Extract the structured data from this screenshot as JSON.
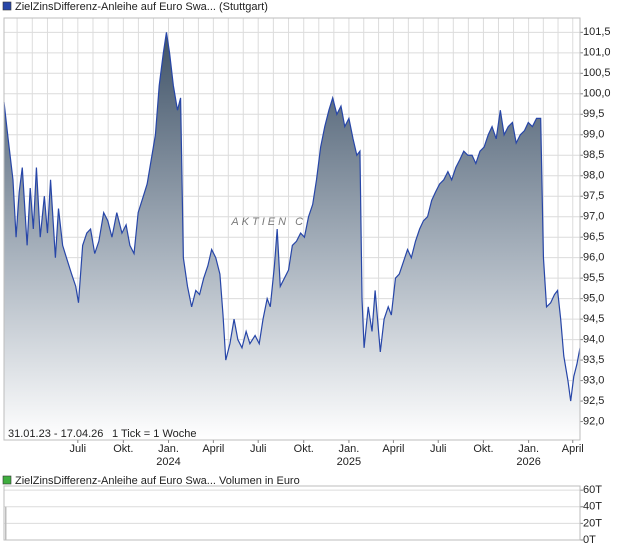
{
  "chart_data": [
    {
      "type": "area",
      "title": "ZielZinsDifferenz-Anleihe auf Euro Swa... (Stuttgart)",
      "period": "31.01.23 - 17.04.26",
      "tick_note": "1 Tick = 1 Woche",
      "watermark": "AKTIEN CHECK",
      "x": [
        0,
        1.2,
        2.6,
        3.5,
        4.4,
        5.3,
        6.7,
        7.6,
        8.5,
        9.4,
        10.5,
        11.7,
        12.6,
        13.5,
        14.9,
        15.8,
        17.0,
        18.1,
        19.6,
        20.8,
        21.6,
        22.8,
        24.0,
        25.1,
        26.3,
        27.5,
        28.9,
        30.1,
        31.3,
        32.7,
        34.2,
        35.4,
        36.5,
        37.7,
        38.9,
        40.4,
        41.5,
        42.7,
        43.9,
        45.0,
        46.2,
        47.1,
        48.0,
        49.1,
        50.3,
        51.2,
        52.0,
        53.2,
        54.4,
        55.6,
        56.7,
        57.9,
        59.1,
        60.2,
        61.4,
        62.6,
        63.5,
        64.3,
        65.5,
        66.7,
        67.8,
        69.0,
        70.2,
        71.3,
        72.8,
        74.0,
        75.1,
        76.3,
        77.2,
        78.4,
        79.2,
        80.1,
        81.3,
        82.5,
        83.6,
        84.8,
        86.0,
        87.1,
        88.3,
        89.5,
        90.6,
        91.8,
        93.0,
        94.2,
        95.3,
        96.5,
        97.7,
        98.8,
        100.0,
        101.2,
        102.3,
        103.2,
        103.8,
        104.4,
        105.6,
        106.7,
        107.6,
        108.5,
        109.1,
        110.2,
        111.4,
        112.3,
        113.5,
        114.6,
        115.8,
        117.0,
        118.1,
        119.3,
        120.5,
        121.6,
        122.8,
        124.0,
        125.1,
        126.3,
        127.5,
        128.7,
        129.8,
        131.0,
        132.2,
        133.3,
        134.5,
        135.7,
        136.8,
        138.0,
        139.2,
        140.4,
        141.5,
        142.7,
        143.9,
        145.0,
        146.2,
        147.4,
        148.5,
        149.7,
        150.9,
        152.0,
        153.2,
        154.4,
        155.6,
        156.4,
        157.3,
        158.5,
        159.6,
        160.5,
        161.4,
        162.3,
        163.5,
        164.3,
        165.2,
        166.1,
        167.0
      ],
      "series": [
        {
          "name": "ZielZinsDifferenz-Anleihe auf Euro Swa... (Stuttgart)",
          "color": "#2746a8",
          "values": [
            99.8,
            98.9,
            97.9,
            96.5,
            97.6,
            98.2,
            96.3,
            97.7,
            96.7,
            98.2,
            96.5,
            97.5,
            96.6,
            97.9,
            96.0,
            97.2,
            96.3,
            96.0,
            95.6,
            95.3,
            94.9,
            96.3,
            96.6,
            96.7,
            96.1,
            96.4,
            97.1,
            96.9,
            96.5,
            97.1,
            96.6,
            96.8,
            96.3,
            96.1,
            97.1,
            97.5,
            97.8,
            98.4,
            99.0,
            100.2,
            101.0,
            101.5,
            101.0,
            100.2,
            99.6,
            99.9,
            96.0,
            95.3,
            94.8,
            95.2,
            95.1,
            95.5,
            95.8,
            96.2,
            96.0,
            95.6,
            94.6,
            93.5,
            93.9,
            94.5,
            94.0,
            93.8,
            94.2,
            93.9,
            94.1,
            93.9,
            94.5,
            95.0,
            94.8,
            95.8,
            96.7,
            95.3,
            95.5,
            95.7,
            96.3,
            96.4,
            96.6,
            96.5,
            97.0,
            97.3,
            97.9,
            98.7,
            99.2,
            99.6,
            99.9,
            99.5,
            99.7,
            99.2,
            99.4,
            98.9,
            98.5,
            98.6,
            95.0,
            93.8,
            94.8,
            94.2,
            95.2,
            94.3,
            93.7,
            94.5,
            94.8,
            94.6,
            95.5,
            95.6,
            95.9,
            96.2,
            96.0,
            96.4,
            96.7,
            96.9,
            97.0,
            97.4,
            97.6,
            97.8,
            97.9,
            98.1,
            97.9,
            98.2,
            98.4,
            98.6,
            98.5,
            98.5,
            98.3,
            98.6,
            98.7,
            99.0,
            99.2,
            98.9,
            99.6,
            99.0,
            99.2,
            99.3,
            98.8,
            99.0,
            99.1,
            99.3,
            99.2,
            99.4,
            99.4,
            96.0,
            94.8,
            94.9,
            95.1,
            95.2,
            94.5,
            93.6,
            93.0,
            92.5,
            93.1,
            93.4,
            93.8
          ]
        }
      ],
      "xlim": [
        0,
        167
      ],
      "xticks": [
        {
          "value": 21.4,
          "label": "Juli"
        },
        {
          "value": 34.6,
          "label": "Okt."
        },
        {
          "value": 47.7,
          "label": "Jan."
        },
        {
          "value": 60.7,
          "label": "April"
        },
        {
          "value": 73.7,
          "label": "Juli"
        },
        {
          "value": 86.9,
          "label": "Okt."
        },
        {
          "value": 100.0,
          "label": "Jan."
        },
        {
          "value": 112.9,
          "label": "April"
        },
        {
          "value": 125.9,
          "label": "Juli"
        },
        {
          "value": 139.0,
          "label": "Okt."
        },
        {
          "value": 152.1,
          "label": "Jan."
        },
        {
          "value": 164.9,
          "label": "April"
        }
      ],
      "year_labels": [
        {
          "value": 47.7,
          "label": "2024"
        },
        {
          "value": 100.0,
          "label": "2025"
        },
        {
          "value": 152.1,
          "label": "2026"
        }
      ],
      "ylim": [
        91.55,
        101.85
      ],
      "yticks": [
        {
          "value": 92.0,
          "label": "92,0"
        },
        {
          "value": 92.5,
          "label": "92,5"
        },
        {
          "value": 93.0,
          "label": "93,0"
        },
        {
          "value": 93.5,
          "label": "93,5"
        },
        {
          "value": 94.0,
          "label": "94,0"
        },
        {
          "value": 94.5,
          "label": "94,5"
        },
        {
          "value": 95.0,
          "label": "95,0"
        },
        {
          "value": 95.5,
          "label": "95,5"
        },
        {
          "value": 96.0,
          "label": "96,0"
        },
        {
          "value": 96.5,
          "label": "96,5"
        },
        {
          "value": 97.0,
          "label": "97,0"
        },
        {
          "value": 97.5,
          "label": "97,5"
        },
        {
          "value": 98.0,
          "label": "98,0"
        },
        {
          "value": 98.5,
          "label": "98,5"
        },
        {
          "value": 99.0,
          "label": "99,0"
        },
        {
          "value": 99.5,
          "label": "99,5"
        },
        {
          "value": 100.0,
          "label": "100,0"
        },
        {
          "value": 100.5,
          "label": "100,5"
        },
        {
          "value": 101.0,
          "label": "101,0"
        },
        {
          "value": 101.5,
          "label": "101,5"
        }
      ],
      "grid": true
    },
    {
      "type": "bar",
      "title": "ZielZinsDifferenz-Anleihe auf Euro Swa... Volumen in Euro",
      "x": [
        0
      ],
      "series": [
        {
          "name": "ZielZinsDifferenz-Anleihe auf Euro Swa... Volumen in Euro",
          "color": "#3fae3f",
          "values": [
            40000
          ]
        }
      ],
      "xlim": [
        0,
        167
      ],
      "ylim": [
        0,
        65000
      ],
      "yticks": [
        {
          "value": 0,
          "label": "0T"
        },
        {
          "value": 20000,
          "label": "20T"
        },
        {
          "value": 40000,
          "label": "40T"
        },
        {
          "value": 60000,
          "label": "60T"
        }
      ],
      "grid": true
    }
  ]
}
